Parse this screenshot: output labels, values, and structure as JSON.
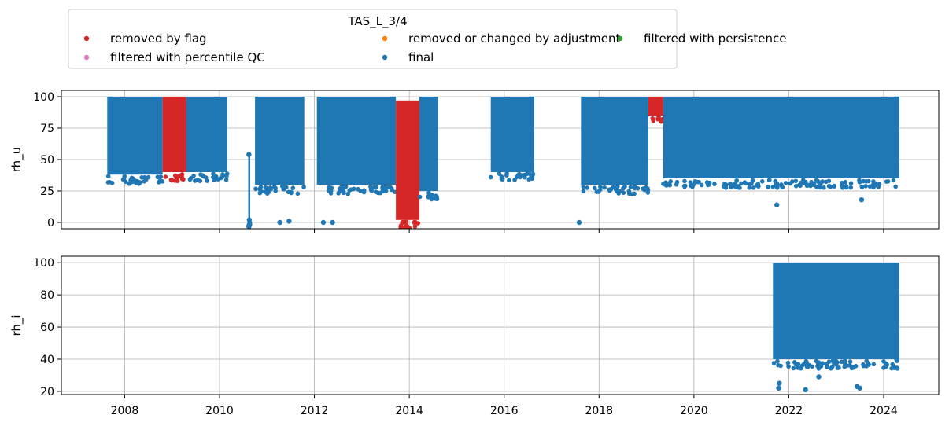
{
  "chart_data": {
    "type": "scatter",
    "legend": {
      "title": "TAS_L_3/4",
      "placement": "top",
      "columns": 3,
      "entries": [
        {
          "label": "removed by flag",
          "color": "#d62728"
        },
        {
          "label": "removed or changed by adjustment",
          "color": "#ff7f0e"
        },
        {
          "label": "filtered with persistence",
          "color": "#2ca02c"
        },
        {
          "label": "filtered with percentile QC",
          "color": "#e377c2"
        },
        {
          "label": "final",
          "color": "#1f77b4"
        }
      ]
    },
    "x_axis": {
      "type": "date",
      "range": [
        "2006-09-01",
        "2025-03-01"
      ],
      "tick_years": [
        2008,
        2010,
        2012,
        2014,
        2016,
        2018,
        2020,
        2022,
        2024
      ],
      "tick_labels": [
        "2008",
        "2010",
        "2012",
        "2014",
        "2016",
        "2018",
        "2020",
        "2022",
        "2024"
      ]
    },
    "panels": [
      {
        "ylabel": "rh_u",
        "ylim": [
          -5,
          105
        ],
        "yticks": [
          0,
          25,
          50,
          75,
          100
        ],
        "ytick_labels": [
          "0",
          "25",
          "50",
          "75",
          "100"
        ],
        "grid": true,
        "bands": [
          {
            "series": "final",
            "start": "2007-08-20",
            "end": "2008-10-20",
            "ymin": 38,
            "ymax": 100
          },
          {
            "series": "removed by flag",
            "start": "2008-10-20",
            "end": "2009-04-20",
            "ymin": 40,
            "ymax": 100
          },
          {
            "series": "final",
            "start": "2009-04-20",
            "end": "2010-03-01",
            "ymin": 40,
            "ymax": 100
          },
          {
            "series": "final",
            "start": "2010-08-10",
            "end": "2010-08-25",
            "ymin": 2,
            "ymax": 53
          },
          {
            "series": "final",
            "start": "2010-10-01",
            "end": "2011-10-15",
            "ymin": 30,
            "ymax": 100
          },
          {
            "series": "final",
            "start": "2012-01-20",
            "end": "2013-09-20",
            "ymin": 30,
            "ymax": 100
          },
          {
            "series": "removed by flag",
            "start": "2013-09-20",
            "end": "2014-03-20",
            "ymin": 2,
            "ymax": 97
          },
          {
            "series": "final",
            "start": "2014-03-20",
            "end": "2014-08-10",
            "ymin": 25,
            "ymax": 100
          },
          {
            "series": "final",
            "start": "2015-09-20",
            "end": "2016-08-20",
            "ymin": 40,
            "ymax": 100
          },
          {
            "series": "final",
            "start": "2017-08-15",
            "end": "2019-01-15",
            "ymin": 30,
            "ymax": 100
          },
          {
            "series": "removed by flag",
            "start": "2019-01-15",
            "end": "2019-05-10",
            "ymin": 85,
            "ymax": 100
          },
          {
            "series": "final",
            "start": "2019-05-10",
            "end": "2024-05-01",
            "ymin": 35,
            "ymax": 100
          }
        ],
        "points": [
          {
            "x": "2010-08-15",
            "y": 54,
            "series": "final"
          },
          {
            "x": "2010-08-18",
            "y": 2,
            "series": "final"
          },
          {
            "x": "2011-04-10",
            "y": 0,
            "series": "final"
          },
          {
            "x": "2011-06-20",
            "y": 1,
            "series": "final"
          },
          {
            "x": "2012-03-10",
            "y": 0,
            "series": "final"
          },
          {
            "x": "2012-05-20",
            "y": 0,
            "series": "final"
          },
          {
            "x": "2013-11-10",
            "y": 0,
            "series": "removed by flag"
          },
          {
            "x": "2014-02-10",
            "y": 0,
            "series": "removed by flag"
          },
          {
            "x": "2017-08-01",
            "y": 0,
            "series": "final"
          },
          {
            "x": "2021-10-01",
            "y": 14,
            "series": "final"
          },
          {
            "x": "2023-07-15",
            "y": 18,
            "series": "final"
          }
        ]
      },
      {
        "ylabel": "rh_i",
        "ylim": [
          18,
          104
        ],
        "yticks": [
          20,
          40,
          60,
          80,
          100
        ],
        "ytick_labels": [
          "20",
          "40",
          "60",
          "80",
          "100"
        ],
        "grid": true,
        "bands": [
          {
            "series": "final",
            "start": "2021-09-01",
            "end": "2024-05-01",
            "ymin": 40,
            "ymax": 100
          }
        ],
        "points": [
          {
            "x": "2021-10-15",
            "y": 22,
            "series": "final"
          },
          {
            "x": "2021-10-20",
            "y": 25,
            "series": "final"
          },
          {
            "x": "2022-05-10",
            "y": 21,
            "series": "final"
          },
          {
            "x": "2022-08-20",
            "y": 29,
            "series": "final"
          },
          {
            "x": "2023-06-10",
            "y": 23,
            "series": "final"
          },
          {
            "x": "2023-07-01",
            "y": 22,
            "series": "final"
          },
          {
            "x": "2024-04-10",
            "y": 40,
            "series": "final"
          }
        ]
      }
    ]
  }
}
